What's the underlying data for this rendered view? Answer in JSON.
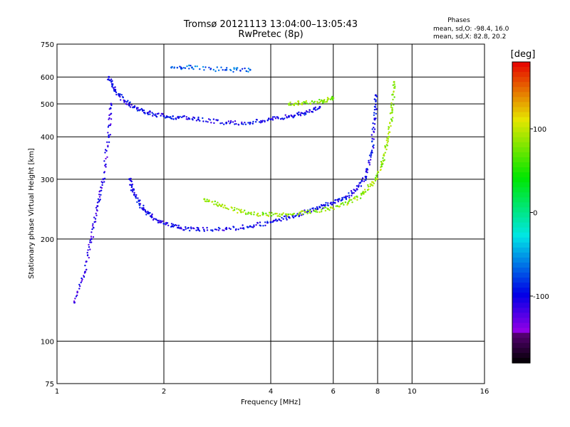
{
  "chart_data": {
    "type": "scatter",
    "title": "Tromsø 20121113 13:04:00–13:05:43",
    "subtitle": "RwPretec (8p)",
    "xlabel": "Frequency [MHz]",
    "ylabel": "Stationary phase Virtual Height [km]",
    "x_scale": "log",
    "y_scale": "log",
    "xlim": [
      1,
      16
    ],
    "ylim": [
      75,
      750
    ],
    "x_ticks": [
      1,
      2,
      4,
      6,
      8,
      10,
      16
    ],
    "y_ticks": [
      75,
      100,
      200,
      300,
      400,
      500,
      600,
      750
    ],
    "grid": true,
    "phases": {
      "heading": "Phases",
      "line_o": "mean, sd,O: -98.4, 16.0",
      "line_x": "mean, sd,X:  82.8, 20.2"
    },
    "colorbar": {
      "label": "[deg]",
      "ticks": [
        100,
        0,
        -100
      ],
      "range": [
        -180,
        180
      ],
      "colormap": "rainbow"
    },
    "traces": [
      {
        "mode": "O",
        "phase": -100,
        "points": [
          [
            1.4,
            600
          ],
          [
            1.45,
            550
          ],
          [
            1.55,
            510
          ],
          [
            1.65,
            490
          ],
          [
            1.8,
            470
          ],
          [
            2.0,
            460
          ],
          [
            2.2,
            455
          ],
          [
            2.5,
            450
          ],
          [
            3.0,
            440
          ],
          [
            3.5,
            440
          ],
          [
            4.0,
            450
          ],
          [
            4.5,
            460
          ],
          [
            5.0,
            470
          ],
          [
            5.5,
            490
          ]
        ]
      },
      {
        "mode": "O",
        "phase": -100,
        "points": [
          [
            1.6,
            300
          ],
          [
            1.65,
            270
          ],
          [
            1.75,
            245
          ],
          [
            1.85,
            232
          ],
          [
            2.0,
            222
          ],
          [
            2.2,
            216
          ],
          [
            2.5,
            213
          ],
          [
            3.0,
            214
          ],
          [
            3.5,
            218
          ],
          [
            4.0,
            224
          ],
          [
            4.5,
            232
          ],
          [
            5.0,
            240
          ],
          [
            5.5,
            248
          ],
          [
            6.0,
            256
          ],
          [
            6.5,
            265
          ],
          [
            7.0,
            280
          ],
          [
            7.4,
            305
          ],
          [
            7.7,
            360
          ],
          [
            7.85,
            450
          ],
          [
            7.9,
            530
          ]
        ]
      },
      {
        "mode": "X",
        "phase": 85,
        "points": [
          [
            2.6,
            262
          ],
          [
            2.9,
            250
          ],
          [
            3.3,
            240
          ],
          [
            3.8,
            236
          ],
          [
            4.3,
            236
          ],
          [
            5.0,
            240
          ],
          [
            5.8,
            245
          ],
          [
            6.6,
            255
          ],
          [
            7.3,
            272
          ],
          [
            7.9,
            300
          ],
          [
            8.3,
            340
          ],
          [
            8.6,
            400
          ],
          [
            8.8,
            480
          ],
          [
            8.9,
            580
          ]
        ]
      },
      {
        "mode": "X",
        "phase": 80,
        "points": [
          [
            4.5,
            500
          ],
          [
            5.0,
            505
          ],
          [
            5.6,
            510
          ],
          [
            6.0,
            520
          ]
        ]
      },
      {
        "mode": "O",
        "phase": -110,
        "points": [
          [
            1.12,
            130
          ],
          [
            1.2,
            160
          ],
          [
            1.25,
            200
          ],
          [
            1.3,
            250
          ],
          [
            1.35,
            300
          ],
          [
            1.4,
            400
          ],
          [
            1.42,
            500
          ]
        ]
      },
      {
        "mode": "O",
        "phase": -70,
        "points": [
          [
            2.1,
            640
          ],
          [
            2.4,
            640
          ],
          [
            3.0,
            630
          ],
          [
            3.5,
            630
          ]
        ]
      }
    ]
  }
}
